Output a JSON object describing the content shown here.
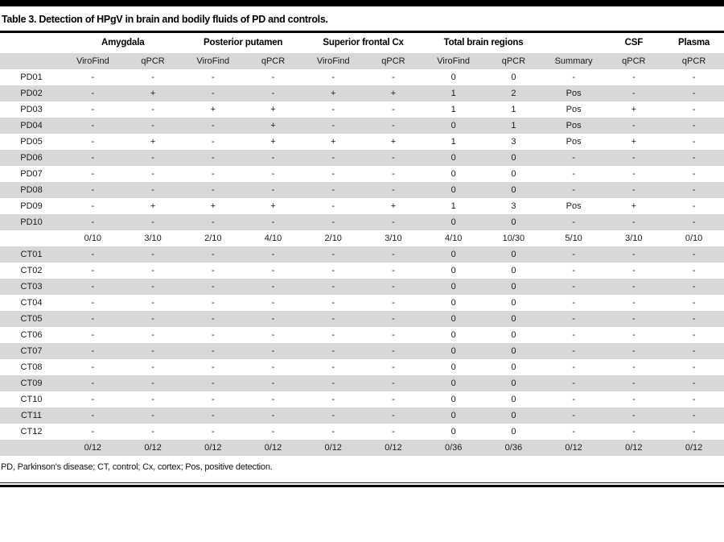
{
  "title": "Table 3. Detection of HPgV in brain and bodily fluids of PD and controls.",
  "footnote": "PD, Parkinson's disease; CT, control; Cx, cortex; Pos, positive detection.",
  "colors": {
    "stripe": "#d8d8d8",
    "rule": "#000000",
    "text": "#1a1a1a"
  },
  "chart_data": {
    "type": "table",
    "title": "Table 3. Detection of HPgV in brain and bodily fluids of PD and controls.",
    "groups": [
      {
        "label": "",
        "span": 1
      },
      {
        "label": "Amygdala",
        "span": 2
      },
      {
        "label": "Posterior putamen",
        "span": 2
      },
      {
        "label": "Superior frontal Cx",
        "span": 2
      },
      {
        "label": "Total brain regions",
        "span": 2
      },
      {
        "label": "",
        "span": 1
      },
      {
        "label": "CSF",
        "span": 1
      },
      {
        "label": "Plasma",
        "span": 1
      }
    ],
    "subheaders": [
      "",
      "ViroFind",
      "qPCR",
      "ViroFind",
      "qPCR",
      "ViroFind",
      "qPCR",
      "ViroFind",
      "qPCR",
      "Summary",
      "qPCR",
      "qPCR"
    ],
    "sections": [
      {
        "name": "PD",
        "rows": [
          {
            "id": "PD01",
            "values": [
              "-",
              "-",
              "-",
              "-",
              "-",
              "-",
              "0",
              "0",
              "-",
              "-",
              "-"
            ]
          },
          {
            "id": "PD02",
            "values": [
              "-",
              "+",
              "-",
              "-",
              "+",
              "+",
              "1",
              "2",
              "Pos",
              "-",
              "-"
            ]
          },
          {
            "id": "PD03",
            "values": [
              "-",
              "-",
              "+",
              "+",
              "-",
              "-",
              "1",
              "1",
              "Pos",
              "+",
              "-"
            ]
          },
          {
            "id": "PD04",
            "values": [
              "-",
              "-",
              "-",
              "+",
              "-",
              "-",
              "0",
              "1",
              "Pos",
              "-",
              "-"
            ]
          },
          {
            "id": "PD05",
            "values": [
              "-",
              "+",
              "-",
              "+",
              "+",
              "+",
              "1",
              "3",
              "Pos",
              "+",
              "-"
            ]
          },
          {
            "id": "PD06",
            "values": [
              "-",
              "-",
              "-",
              "-",
              "-",
              "-",
              "0",
              "0",
              "-",
              "-",
              "-"
            ]
          },
          {
            "id": "PD07",
            "values": [
              "-",
              "-",
              "-",
              "-",
              "-",
              "-",
              "0",
              "0",
              "-",
              "-",
              "-"
            ]
          },
          {
            "id": "PD08",
            "values": [
              "-",
              "-",
              "-",
              "-",
              "-",
              "-",
              "0",
              "0",
              "-",
              "-",
              "-"
            ]
          },
          {
            "id": "PD09",
            "values": [
              "-",
              "+",
              "+",
              "+",
              "-",
              "+",
              "1",
              "3",
              "Pos",
              "+",
              "-"
            ]
          },
          {
            "id": "PD10",
            "values": [
              "-",
              "-",
              "-",
              "-",
              "-",
              "-",
              "0",
              "0",
              "-",
              "-",
              "-"
            ]
          }
        ],
        "totals": [
          "0/10",
          "3/10",
          "2/10",
          "4/10",
          "2/10",
          "3/10",
          "4/10",
          "10/30",
          "5/10",
          "3/10",
          "0/10"
        ]
      },
      {
        "name": "CT",
        "rows": [
          {
            "id": "CT01",
            "values": [
              "-",
              "-",
              "-",
              "-",
              "-",
              "-",
              "0",
              "0",
              "-",
              "-",
              "-"
            ]
          },
          {
            "id": "CT02",
            "values": [
              "-",
              "-",
              "-",
              "-",
              "-",
              "-",
              "0",
              "0",
              "-",
              "-",
              "-"
            ]
          },
          {
            "id": "CT03",
            "values": [
              "-",
              "-",
              "-",
              "-",
              "-",
              "-",
              "0",
              "0",
              "-",
              "-",
              "-"
            ]
          },
          {
            "id": "CT04",
            "values": [
              "-",
              "-",
              "-",
              "-",
              "-",
              "-",
              "0",
              "0",
              "-",
              "-",
              "-"
            ]
          },
          {
            "id": "CT05",
            "values": [
              "-",
              "-",
              "-",
              "-",
              "-",
              "-",
              "0",
              "0",
              "-",
              "-",
              "-"
            ]
          },
          {
            "id": "CT06",
            "values": [
              "-",
              "-",
              "-",
              "-",
              "-",
              "-",
              "0",
              "0",
              "-",
              "-",
              "-"
            ]
          },
          {
            "id": "CT07",
            "values": [
              "-",
              "-",
              "-",
              "-",
              "-",
              "-",
              "0",
              "0",
              "-",
              "-",
              "-"
            ]
          },
          {
            "id": "CT08",
            "values": [
              "-",
              "-",
              "-",
              "-",
              "-",
              "-",
              "0",
              "0",
              "-",
              "-",
              "-"
            ]
          },
          {
            "id": "CT09",
            "values": [
              "-",
              "-",
              "-",
              "-",
              "-",
              "-",
              "0",
              "0",
              "-",
              "-",
              "-"
            ]
          },
          {
            "id": "CT10",
            "values": [
              "-",
              "-",
              "-",
              "-",
              "-",
              "-",
              "0",
              "0",
              "-",
              "-",
              "-"
            ]
          },
          {
            "id": "CT11",
            "values": [
              "-",
              "-",
              "-",
              "-",
              "-",
              "-",
              "0",
              "0",
              "-",
              "-",
              "-"
            ]
          },
          {
            "id": "CT12",
            "values": [
              "-",
              "-",
              "-",
              "-",
              "-",
              "-",
              "0",
              "0",
              "-",
              "-",
              "-"
            ]
          }
        ],
        "totals": [
          "0/12",
          "0/12",
          "0/12",
          "0/12",
          "0/12",
          "0/12",
          "0/36",
          "0/36",
          "0/12",
          "0/12",
          "0/12"
        ]
      }
    ],
    "footnote": "PD, Parkinson's disease; CT, control; Cx, cortex; Pos, positive detection."
  }
}
